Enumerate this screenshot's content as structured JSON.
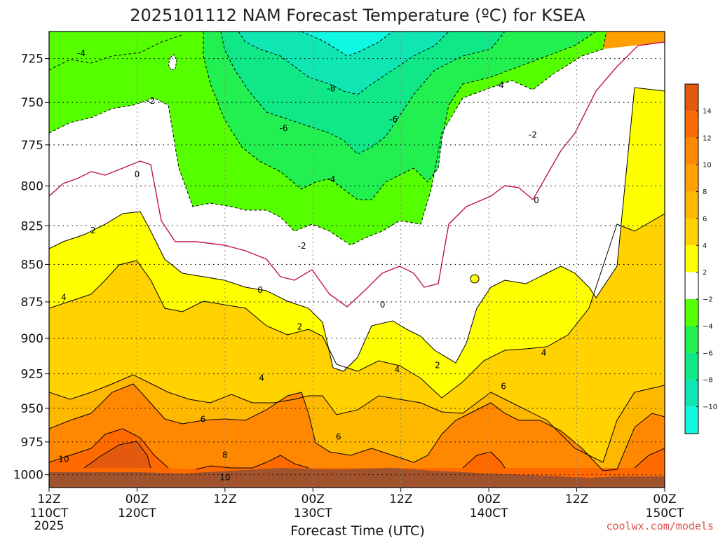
{
  "chart_data": {
    "type": "heatmap",
    "title": "2025101112 NAM Forecast Temperature (ºC) for KSEA",
    "xlabel": "Forecast Time (UTC)",
    "ylabel": "",
    "y_ticks": [
      "725",
      "750",
      "775",
      "800",
      "825",
      "850",
      "875",
      "900",
      "925",
      "950",
      "975",
      "1000"
    ],
    "y_values": [
      725,
      750,
      775,
      800,
      825,
      850,
      875,
      900,
      925,
      950,
      975,
      1000
    ],
    "ylim": [
      1010,
      710
    ],
    "y_scale": "log",
    "x_ticks": [
      {
        "hour": "12Z",
        "date": "110CT",
        "year": "2025"
      },
      {
        "hour": "00Z",
        "date": "120CT",
        "year": ""
      },
      {
        "hour": "12Z",
        "date": "",
        "year": ""
      },
      {
        "hour": "00Z",
        "date": "130CT",
        "year": ""
      },
      {
        "hour": "12Z",
        "date": "",
        "year": ""
      },
      {
        "hour": "00Z",
        "date": "140CT",
        "year": ""
      },
      {
        "hour": "12Z",
        "date": "",
        "year": ""
      },
      {
        "hour": "00Z",
        "date": "150CT",
        "year": ""
      }
    ],
    "x_forecast_hours": [
      0,
      12,
      24,
      36,
      48,
      60,
      72,
      84
    ],
    "xlim": [
      0,
      84
    ],
    "grid": true,
    "colorbar": {
      "labels": [
        "14",
        "12",
        "10",
        "8",
        "6",
        "4",
        "2",
        "−2",
        "−4",
        "−6",
        "−8",
        "−10"
      ],
      "bands": [
        {
          "from": 16,
          "to": 14,
          "color": "#e35a0e"
        },
        {
          "from": 14,
          "to": 12,
          "color": "#ff6a00"
        },
        {
          "from": 12,
          "to": 10,
          "color": "#ff8800"
        },
        {
          "from": 10,
          "to": 8,
          "color": "#ffa000"
        },
        {
          "from": 8,
          "to": 6,
          "color": "#ffb800"
        },
        {
          "from": 6,
          "to": 4,
          "color": "#ffd200"
        },
        {
          "from": 4,
          "to": 2,
          "color": "#ffff00"
        },
        {
          "from": 2,
          "to": -2,
          "color": "#ffffff"
        },
        {
          "from": -2,
          "to": -4,
          "color": "#55ff00"
        },
        {
          "from": -4,
          "to": -6,
          "color": "#22f050"
        },
        {
          "from": -6,
          "to": -8,
          "color": "#10e888"
        },
        {
          "from": -8,
          "to": -10,
          "color": "#10e6b4"
        },
        {
          "from": -10,
          "to": -12,
          "color": "#10f8e0"
        }
      ]
    },
    "contour_labels": [
      {
        "value": "-4",
        "hour": 4.4,
        "p": 722
      },
      {
        "value": "-2",
        "hour": 13.9,
        "p": 749
      },
      {
        "value": "0",
        "hour": 12.0,
        "p": 793
      },
      {
        "value": "2",
        "hour": 6.0,
        "p": 828
      },
      {
        "value": "4",
        "hour": 2.0,
        "p": 872
      },
      {
        "value": "10",
        "hour": 2.0,
        "p": 988
      },
      {
        "value": "-8",
        "hour": 38.5,
        "p": 742
      },
      {
        "value": "-6",
        "hour": 32.0,
        "p": 765
      },
      {
        "value": "-6",
        "hour": 47.0,
        "p": 760
      },
      {
        "value": "-4",
        "hour": 38.5,
        "p": 796
      },
      {
        "value": "-2",
        "hour": 34.5,
        "p": 838
      },
      {
        "value": "0",
        "hour": 28.8,
        "p": 867
      },
      {
        "value": "2",
        "hour": 34.2,
        "p": 892
      },
      {
        "value": "4",
        "hour": 29.0,
        "p": 928
      },
      {
        "value": "6",
        "hour": 21.0,
        "p": 958
      },
      {
        "value": "8",
        "hour": 24.0,
        "p": 985
      },
      {
        "value": "10",
        "hour": 24.0,
        "p": 1002
      },
      {
        "value": "0",
        "hour": 45.5,
        "p": 877
      },
      {
        "value": "6",
        "hour": 39.5,
        "p": 971
      },
      {
        "value": "4",
        "hour": 47.5,
        "p": 922
      },
      {
        "value": "2",
        "hour": 53.0,
        "p": 919
      },
      {
        "value": "-4",
        "hour": 61.5,
        "p": 740
      },
      {
        "value": "-2",
        "hour": 66.0,
        "p": 769
      },
      {
        "value": "0",
        "hour": 66.5,
        "p": 809
      },
      {
        "value": "4",
        "hour": 67.5,
        "p": 910
      },
      {
        "value": "6",
        "hour": 62.0,
        "p": 934
      }
    ]
  },
  "footer": {
    "credit": "coolwx.com/models"
  }
}
